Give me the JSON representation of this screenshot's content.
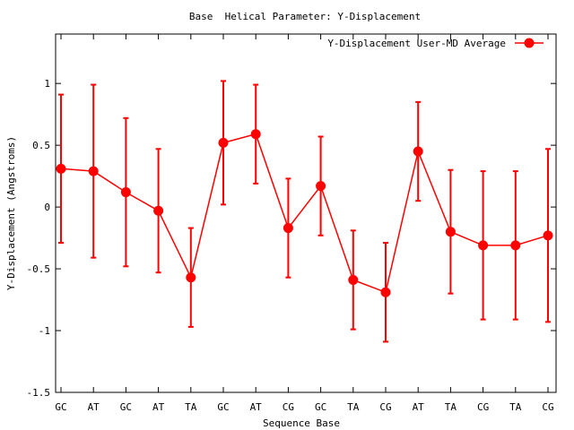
{
  "chart_data": {
    "type": "line",
    "title": "Base  Helical Parameter: Y-Displacement",
    "xlabel": "Sequence Base",
    "ylabel": "Y-Displacement (Angstroms)",
    "ylim": [
      -1.5,
      1.4
    ],
    "y_ticks": [
      {
        "value": 1,
        "label": "1"
      },
      {
        "value": 0.5,
        "label": "0.5"
      },
      {
        "value": 0,
        "label": "0"
      },
      {
        "value": -0.5,
        "label": "-0.5"
      },
      {
        "value": -1,
        "label": "-1"
      },
      {
        "value": -1.5,
        "label": "-1.5"
      }
    ],
    "categories": [
      "GC",
      "AT",
      "GC",
      "AT",
      "TA",
      "GC",
      "AT",
      "CG",
      "GC",
      "TA",
      "CG",
      "AT",
      "TA",
      "CG",
      "TA",
      "CG"
    ],
    "legend_position": "top-right",
    "grid": false,
    "color": "#ff0000",
    "series": [
      {
        "name": "Y-Displacement User-MD Average",
        "values": [
          0.31,
          0.29,
          0.12,
          -0.03,
          -0.57,
          0.52,
          0.59,
          -0.17,
          0.17,
          -0.59,
          -0.69,
          0.45,
          -0.2,
          -0.31,
          -0.31,
          -0.23
        ],
        "lower": [
          -0.29,
          -0.41,
          -0.48,
          -0.53,
          -0.97,
          0.02,
          0.19,
          -0.57,
          -0.23,
          -0.99,
          -1.09,
          0.05,
          -0.7,
          -0.91,
          -0.91,
          -0.93
        ],
        "upper": [
          0.91,
          0.99,
          0.72,
          0.47,
          -0.17,
          1.02,
          0.99,
          0.23,
          0.57,
          -0.19,
          -0.29,
          0.85,
          0.3,
          0.29,
          0.29,
          0.47
        ]
      }
    ]
  }
}
